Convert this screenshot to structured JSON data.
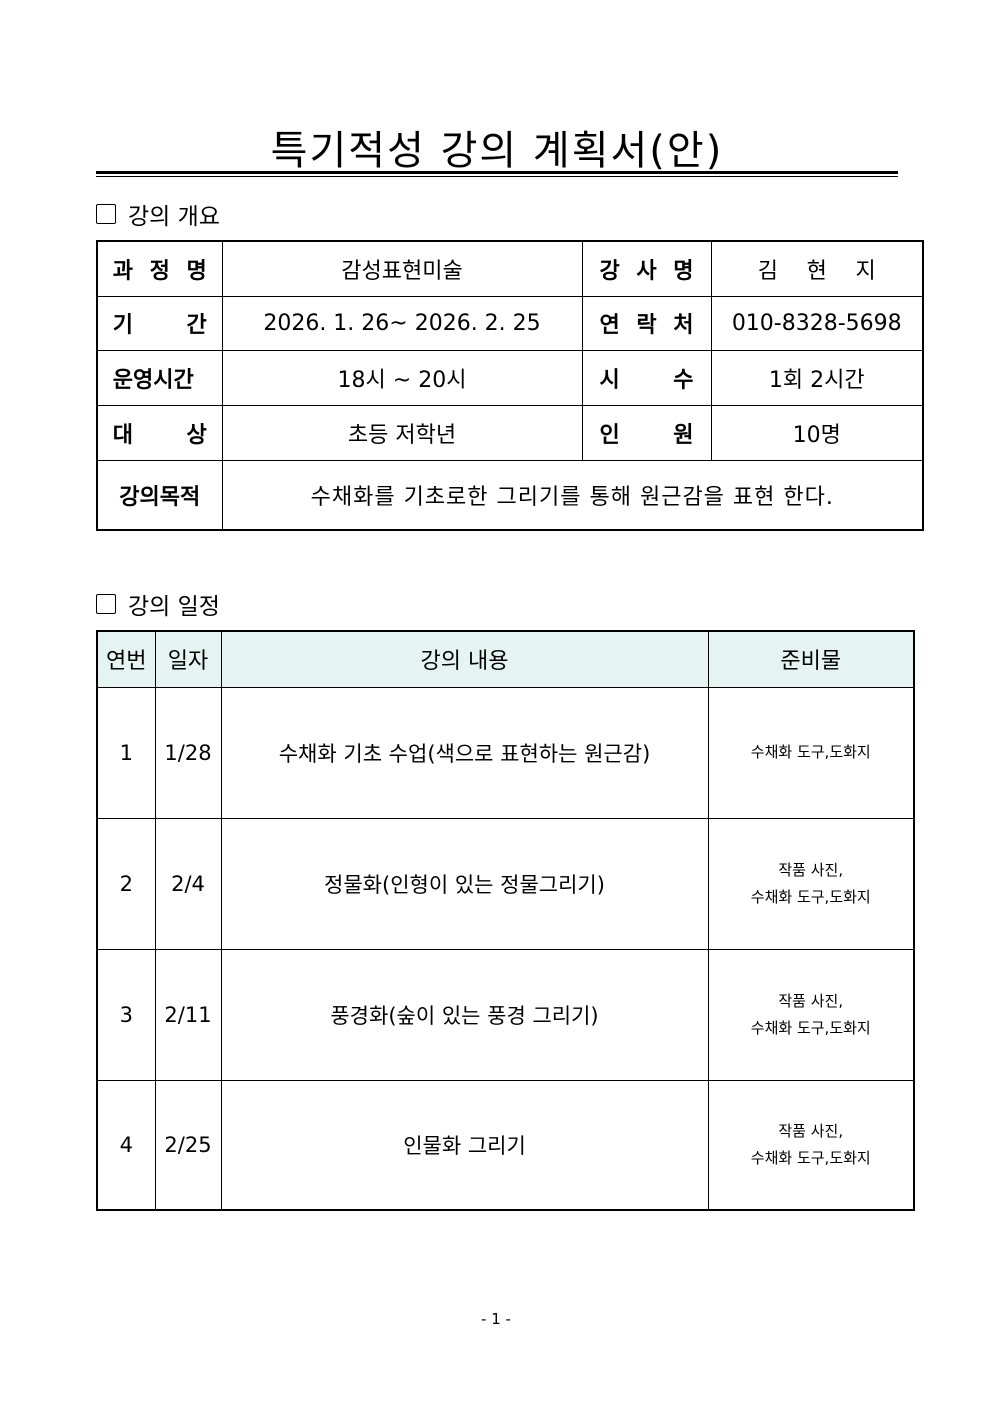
{
  "title": "특기적성 강의 계획서(안)",
  "overview": {
    "heading": "강의 개요",
    "rows": [
      {
        "k1": "과 정 명",
        "v1": "감성표현미술",
        "k2": "강 사 명",
        "v2": "김 현 지"
      },
      {
        "k1": "기 간",
        "v1": "2026. 1. 26~ 2026. 2. 25",
        "k2": "연 락 처",
        "v2": "010-8328-5698"
      },
      {
        "k1": "운영시간",
        "v1": "18시 ~ 20시",
        "k2": "시 수",
        "v2": "1회 2시간"
      },
      {
        "k1": "대 상",
        "v1": "초등 저학년",
        "k2": "인 원",
        "v2": "10명"
      }
    ],
    "purpose_label": "강의목적",
    "purpose": "수채화를 기초로한 그리기를 통해 원근감을 표현 한다."
  },
  "schedule": {
    "heading": "강의 일정",
    "headers": [
      "연번",
      "일자",
      "강의 내용",
      "준비물"
    ],
    "rows": [
      {
        "no": "1",
        "date": "1/28",
        "content": "수채화 기초 수업(색으로 표현하는 원근감)",
        "mat1": "",
        "mat2": "수채화 도구,도화지"
      },
      {
        "no": "2",
        "date": "2/4",
        "content": "정물화(인형이 있는 정물그리기)",
        "mat1": "작품 사진,",
        "mat2": "수채화 도구,도화지"
      },
      {
        "no": "3",
        "date": "2/11",
        "content": "풍경화(숲이 있는 풍경 그리기)",
        "mat1": "작품 사진,",
        "mat2": "수채화 도구,도화지"
      },
      {
        "no": "4",
        "date": "2/25",
        "content": "인물화 그리기",
        "mat1": "작품 사진,",
        "mat2": "수채화 도구,도화지"
      }
    ]
  },
  "page_number": "- 1 -"
}
